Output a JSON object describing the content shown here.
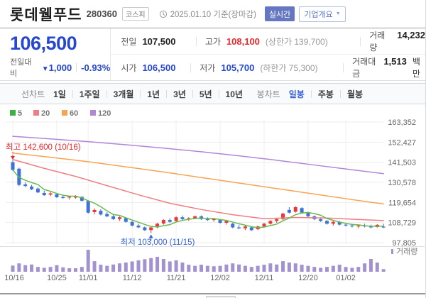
{
  "header": {
    "title": "롯데웰푸드",
    "code": "280360",
    "market_badge": "코스피",
    "datetime": "2025.01.10 기준(장마감)",
    "realtime_badge": "실시간",
    "company_badge": "기업개요",
    "company_caret": "▼"
  },
  "price": {
    "current": "106,500",
    "change_label": "전일대비",
    "change_dir": "▼",
    "change_value": "1,000",
    "change_pct": "-0.93%"
  },
  "summary": {
    "rows": [
      {
        "c1l": "전일",
        "c1v": "107,500",
        "c2l": "고가",
        "c2v": "108,100",
        "c2note": "(상한가 139,700)",
        "c3l": "거래량",
        "c3v": "14,232",
        "c3s": ""
      },
      {
        "c1l": "시가",
        "c1v": "106,500",
        "c2l": "저가",
        "c2v": "105,700",
        "c2note": "(하한가 75,300)",
        "c3l": "거래대금",
        "c3v": "1,513",
        "c3s": "백만"
      }
    ]
  },
  "toolbar": {
    "left_label": "선차트",
    "left_items": [
      "1일",
      "1주일",
      "3개월",
      "1년",
      "3년",
      "5년",
      "10년"
    ],
    "right_label": "봉차트",
    "right_items": [
      "일봉",
      "주봉",
      "월봉"
    ],
    "right_selected": "일봉"
  },
  "colors_ui": {
    "price_down_blue": "#2647d0",
    "price_up_red": "#e8282d",
    "selected_tab_blue": "#3a62d8",
    "realtime_badge_bg": "#6577c1"
  },
  "chart_data": {
    "type": "candlestick",
    "volume_label": "거래량",
    "legend": [
      {
        "label": "5",
        "color": "#3cb043"
      },
      {
        "label": "20",
        "color": "#ef7d84"
      },
      {
        "label": "60",
        "color": "#f7a351"
      },
      {
        "label": "120",
        "color": "#b185d8"
      }
    ],
    "colors": {
      "up": "#e8383d",
      "down": "#3f71d9",
      "volume": "#a392d0",
      "ma5": "#66bb4d",
      "ma20": "#ef7d84",
      "ma60": "#f7a351",
      "ma120": "#b185d8"
    },
    "y_ticks": [
      {
        "label": "163,352",
        "value": 163352
      },
      {
        "label": "152,427",
        "value": 152427
      },
      {
        "label": "141,503",
        "value": 141503
      },
      {
        "label": "130,578",
        "value": 130578
      },
      {
        "label": "119,654",
        "value": 119654
      },
      {
        "label": "108,729",
        "value": 108729
      },
      {
        "label": "97,805",
        "value": 97805
      }
    ],
    "x_labels": [
      {
        "index": 0,
        "label": "10/16"
      },
      {
        "index": 7,
        "label": "10/25"
      },
      {
        "index": 12,
        "label": "11/01"
      },
      {
        "index": 19,
        "label": "11/12"
      },
      {
        "index": 26,
        "label": "11/21"
      },
      {
        "index": 33,
        "label": "12/02"
      },
      {
        "index": 40,
        "label": "12/11"
      },
      {
        "index": 47,
        "label": "12/20"
      },
      {
        "index": 53,
        "label": "01/02"
      }
    ],
    "annotations": {
      "high": {
        "label": "최고 142,600 (10/16)",
        "value": 142600,
        "index": 0,
        "color": "#e8282d"
      },
      "low": {
        "label": "최저 103,000 (11/15)",
        "value": 103000,
        "index": 22,
        "color": "#3564de"
      }
    },
    "dates": [
      "10/16",
      "10/17",
      "10/18",
      "10/21",
      "10/22",
      "10/23",
      "10/24",
      "10/25",
      "10/28",
      "10/29",
      "10/30",
      "10/31",
      "11/01",
      "11/04",
      "11/05",
      "11/06",
      "11/07",
      "11/08",
      "11/11",
      "11/12",
      "11/13",
      "11/14",
      "11/15",
      "11/18",
      "11/19",
      "11/20",
      "11/21",
      "11/22",
      "11/25",
      "11/26",
      "11/27",
      "11/28",
      "11/29",
      "12/02",
      "12/03",
      "12/04",
      "12/05",
      "12/06",
      "12/09",
      "12/10",
      "12/11",
      "12/12",
      "12/13",
      "12/16",
      "12/17",
      "12/18",
      "12/19",
      "12/20",
      "12/23",
      "12/24",
      "12/26",
      "12/27",
      "12/30",
      "01/02",
      "01/03",
      "01/06",
      "01/07",
      "01/08",
      "01/09",
      "01/10"
    ],
    "ohlc": [
      [
        141500,
        142600,
        136800,
        137300
      ],
      [
        138000,
        138500,
        128500,
        129200
      ],
      [
        129500,
        130500,
        127800,
        128600
      ],
      [
        128300,
        129200,
        126300,
        126800
      ],
      [
        127200,
        127800,
        124700,
        125100
      ],
      [
        124800,
        126100,
        123200,
        123600
      ],
      [
        123900,
        125400,
        123100,
        124600
      ],
      [
        124100,
        124600,
        122100,
        122500
      ],
      [
        122600,
        123600,
        121600,
        122100
      ],
      [
        122300,
        123100,
        121200,
        122800
      ],
      [
        122300,
        123600,
        121700,
        123100
      ],
      [
        122700,
        123100,
        120100,
        120600
      ],
      [
        120500,
        121000,
        113600,
        114100
      ],
      [
        114400,
        116400,
        113100,
        115600
      ],
      [
        115100,
        116000,
        112600,
        113100
      ],
      [
        113400,
        114400,
        111600,
        112100
      ],
      [
        112100,
        113100,
        110100,
        110600
      ],
      [
        110600,
        112100,
        109600,
        111600
      ],
      [
        111100,
        111600,
        108600,
        109100
      ],
      [
        109100,
        109600,
        106600,
        107100
      ],
      [
        107100,
        108100,
        105600,
        106100
      ],
      [
        106100,
        106600,
        104100,
        104600
      ],
      [
        104600,
        106600,
        103000,
        106100
      ],
      [
        106100,
        108600,
        105600,
        108100
      ],
      [
        108200,
        110600,
        107600,
        110100
      ],
      [
        110100,
        111100,
        108600,
        109100
      ],
      [
        109600,
        112100,
        109100,
        111600
      ],
      [
        111600,
        112600,
        110100,
        110600
      ],
      [
        110600,
        111600,
        109600,
        111100
      ],
      [
        111100,
        112600,
        110600,
        112100
      ],
      [
        112100,
        112600,
        110100,
        110600
      ],
      [
        110600,
        111600,
        109600,
        110100
      ],
      [
        110100,
        111100,
        109100,
        110600
      ],
      [
        110100,
        110600,
        108100,
        108600
      ],
      [
        108600,
        110100,
        107600,
        109600
      ],
      [
        108100,
        108600,
        105600,
        106100
      ],
      [
        106100,
        107600,
        105100,
        105600
      ],
      [
        105600,
        107100,
        104600,
        106600
      ],
      [
        106100,
        106600,
        104100,
        104600
      ],
      [
        105100,
        107100,
        104600,
        106600
      ],
      [
        106600,
        108600,
        106100,
        108100
      ],
      [
        108100,
        110100,
        107600,
        109600
      ],
      [
        109600,
        111100,
        108600,
        110600
      ],
      [
        110600,
        114100,
        110100,
        113600
      ],
      [
        115600,
        117100,
        113600,
        114100
      ],
      [
        114600,
        117600,
        114100,
        117100
      ],
      [
        116600,
        117100,
        113600,
        114100
      ],
      [
        114100,
        114600,
        111600,
        112100
      ],
      [
        112100,
        112600,
        110100,
        110600
      ],
      [
        110600,
        111600,
        109100,
        109600
      ],
      [
        109600,
        110100,
        107600,
        108100
      ],
      [
        108100,
        109600,
        107100,
        109100
      ],
      [
        109100,
        109600,
        107100,
        107600
      ],
      [
        107600,
        108600,
        106600,
        107100
      ],
      [
        107100,
        108100,
        106100,
        106600
      ],
      [
        106600,
        107600,
        105600,
        107100
      ],
      [
        107100,
        108100,
        106100,
        106600
      ],
      [
        106600,
        107600,
        105600,
        106100
      ],
      [
        106300,
        107800,
        106000,
        107500
      ],
      [
        106500,
        108100,
        105700,
        106500
      ]
    ],
    "volume": [
      0.28,
      0.38,
      0.3,
      0.33,
      0.22,
      0.18,
      0.22,
      0.3,
      0.2,
      0.16,
      0.16,
      0.22,
      1.0,
      0.48,
      0.32,
      0.27,
      0.33,
      0.38,
      0.42,
      0.47,
      0.52,
      0.57,
      0.62,
      0.68,
      0.58,
      0.47,
      0.52,
      0.42,
      0.32,
      0.27,
      0.32,
      0.27,
      0.25,
      0.27,
      0.33,
      0.38,
      0.33,
      0.27,
      0.22,
      0.27,
      0.32,
      0.38,
      0.33,
      0.48,
      0.42,
      0.38,
      0.32,
      0.27,
      0.22,
      0.18,
      0.22,
      0.27,
      0.32,
      0.22,
      0.18,
      0.22,
      0.38,
      0.58,
      0.42,
      0.12
    ],
    "ma20": [
      [
        0,
        143000
      ],
      [
        5,
        138200
      ],
      [
        10,
        133800
      ],
      [
        15,
        128800
      ],
      [
        20,
        123800
      ],
      [
        25,
        119200
      ],
      [
        30,
        115800
      ],
      [
        35,
        113000
      ],
      [
        40,
        110800
      ],
      [
        45,
        111500
      ],
      [
        50,
        111200
      ],
      [
        55,
        110400
      ],
      [
        59,
        109800
      ]
    ],
    "ma60": [
      [
        0,
        146500
      ],
      [
        6,
        144200
      ],
      [
        12,
        141800
      ],
      [
        18,
        139000
      ],
      [
        24,
        136200
      ],
      [
        30,
        133200
      ],
      [
        36,
        130200
      ],
      [
        42,
        127200
      ],
      [
        48,
        124200
      ],
      [
        54,
        121200
      ],
      [
        59,
        118800
      ]
    ],
    "ma120": [
      [
        0,
        155600
      ],
      [
        6,
        154200
      ],
      [
        12,
        152700
      ],
      [
        18,
        151000
      ],
      [
        24,
        149200
      ],
      [
        30,
        147200
      ],
      [
        36,
        145000
      ],
      [
        42,
        142600
      ],
      [
        48,
        140000
      ],
      [
        54,
        137400
      ],
      [
        59,
        135300
      ]
    ]
  }
}
